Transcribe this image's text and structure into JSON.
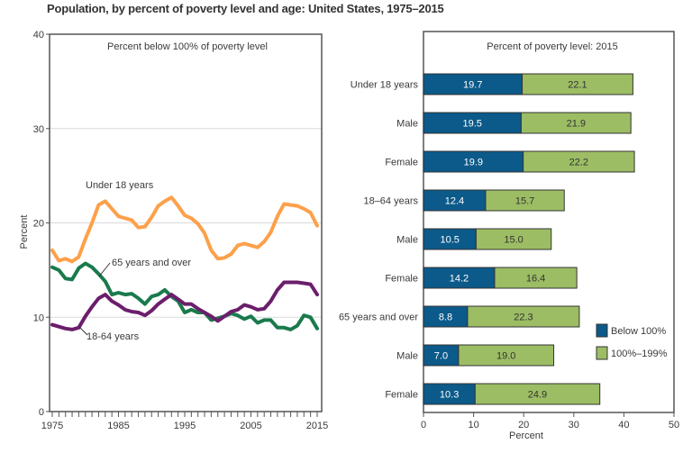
{
  "page_title": "Population, by percent of poverty level and age: United States, 1975–2015",
  "colors": {
    "under18": "#FDA04A",
    "age65": "#1A7A4C",
    "age18_64": "#6B1E6B",
    "below100": "#0B5A8A",
    "pct100_199": "#9CBD64",
    "grid": "#d9d9d9",
    "axis": "#555555"
  },
  "chart_data": [
    {
      "type": "line",
      "title": "Percent below 100% of poverty level",
      "xlabel": "",
      "ylabel": "Percent",
      "xlim": [
        1975,
        2015
      ],
      "ylim": [
        0,
        40
      ],
      "yticks": [
        0,
        10,
        20,
        30,
        40
      ],
      "xtick_labels": [
        "1975",
        "1985",
        "1995",
        "2005",
        "2015"
      ],
      "xticks_major": [
        1975,
        1985,
        1995,
        2005,
        2015
      ],
      "grid": true,
      "x": [
        1975,
        1976,
        1977,
        1978,
        1979,
        1980,
        1981,
        1982,
        1983,
        1984,
        1985,
        1986,
        1987,
        1988,
        1989,
        1990,
        1991,
        1992,
        1993,
        1994,
        1995,
        1996,
        1997,
        1998,
        1999,
        2000,
        2001,
        2002,
        2003,
        2004,
        2005,
        2006,
        2007,
        2008,
        2009,
        2010,
        2011,
        2012,
        2013,
        2014,
        2015
      ],
      "series": [
        {
          "name": "Under 18 years",
          "key": "under18",
          "label": "Under 18 years",
          "values": [
            17.1,
            16.0,
            16.2,
            15.9,
            16.4,
            18.3,
            20.0,
            21.9,
            22.3,
            21.5,
            20.7,
            20.5,
            20.3,
            19.5,
            19.6,
            20.6,
            21.8,
            22.3,
            22.7,
            21.8,
            20.8,
            20.5,
            19.9,
            18.9,
            17.1,
            16.2,
            16.3,
            16.7,
            17.6,
            17.8,
            17.6,
            17.4,
            18.0,
            19.0,
            20.7,
            22.0,
            21.9,
            21.8,
            21.5,
            21.1,
            19.7
          ]
        },
        {
          "name": "65 years and over",
          "key": "age65",
          "label": "65 years and over",
          "values": [
            15.3,
            15.0,
            14.1,
            14.0,
            15.2,
            15.7,
            15.3,
            14.6,
            13.8,
            12.4,
            12.6,
            12.4,
            12.5,
            12.0,
            11.4,
            12.2,
            12.4,
            12.9,
            12.2,
            11.7,
            10.5,
            10.8,
            10.5,
            10.5,
            9.7,
            9.9,
            10.1,
            10.4,
            10.2,
            9.8,
            10.1,
            9.4,
            9.7,
            9.7,
            8.9,
            8.9,
            8.7,
            9.1,
            10.2,
            10.0,
            8.8
          ]
        },
        {
          "name": "18-64 years",
          "key": "age18_64",
          "label": "18-64 years",
          "values": [
            9.2,
            9.0,
            8.8,
            8.7,
            8.9,
            10.1,
            11.1,
            12.0,
            12.4,
            11.7,
            11.3,
            10.8,
            10.6,
            10.5,
            10.2,
            10.7,
            11.4,
            11.9,
            12.4,
            11.9,
            11.4,
            11.4,
            10.9,
            10.5,
            10.1,
            9.6,
            10.1,
            10.6,
            10.8,
            11.3,
            11.1,
            10.8,
            10.9,
            11.7,
            12.9,
            13.7,
            13.7,
            13.7,
            13.6,
            13.5,
            12.4
          ]
        }
      ]
    },
    {
      "type": "bar",
      "stacked": true,
      "orientation": "horizontal",
      "title": "Percent of poverty level: 2015",
      "xlabel": "Percent",
      "ylabel": "",
      "xlim": [
        0,
        50
      ],
      "xticks": [
        0,
        10,
        20,
        30,
        40,
        50
      ],
      "grid": false,
      "legend_position": "right",
      "categories": [
        "Under 18 years",
        "Male",
        "Female",
        "18–64 years",
        "Male",
        "Female",
        "65 years and over",
        "Male",
        "Female"
      ],
      "series": [
        {
          "name": "Below 100%",
          "key": "below100",
          "values": [
            19.7,
            19.5,
            19.9,
            12.4,
            10.5,
            14.2,
            8.8,
            7.0,
            10.3
          ]
        },
        {
          "name": "100%–199%",
          "key": "pct100_199",
          "values": [
            22.1,
            21.9,
            22.2,
            15.7,
            15.0,
            16.4,
            22.3,
            19.0,
            24.9
          ]
        }
      ]
    }
  ]
}
